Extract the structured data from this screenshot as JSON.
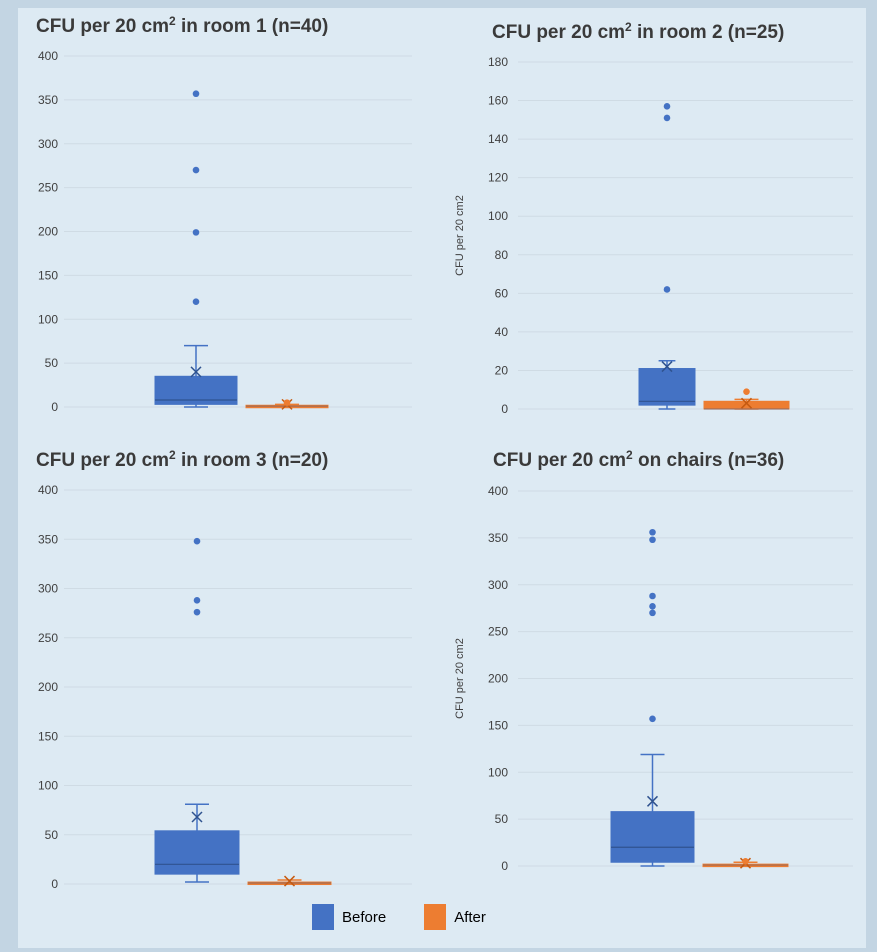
{
  "colors": {
    "before": "#4472c4",
    "after": "#ed7d31",
    "grid": "#cfdbe4",
    "panel_bg": "#ddeaf3",
    "page_bg": "#c3d5e3"
  },
  "legend": {
    "before_label": "Before",
    "after_label": "After"
  },
  "chart_data": [
    {
      "type": "box",
      "title": "CFU per 20 cm2 in room 1 (n=40)",
      "title_parts": {
        "pre": "CFU per 20 cm",
        "sup": "2",
        "post": " in room 1 (n=40)"
      },
      "ylabel": "",
      "ylim": [
        0,
        400
      ],
      "yticks": [
        0,
        50,
        100,
        150,
        200,
        250,
        300,
        350,
        400
      ],
      "grid": true,
      "series": [
        {
          "name": "Before",
          "q1": 3,
          "median": 8,
          "q3": 35,
          "whisker_low": 0,
          "whisker_high": 70,
          "mean": 40,
          "outliers": [
            120,
            199,
            270,
            357
          ]
        },
        {
          "name": "After",
          "q1": 0,
          "median": 1,
          "q3": 2,
          "whisker_low": 0,
          "whisker_high": 3,
          "mean": 3,
          "outliers": [
            5
          ]
        }
      ]
    },
    {
      "type": "box",
      "title": "CFU per 20 cm2 in room 2 (n=25)",
      "title_parts": {
        "pre": "CFU per 20 cm",
        "sup": "2",
        "post": " in room 2 (n=25)"
      },
      "ylabel": "CFU per 20 cm2",
      "ylim": [
        0,
        180
      ],
      "yticks": [
        0,
        20,
        40,
        60,
        80,
        100,
        120,
        140,
        160,
        180
      ],
      "grid": true,
      "series": [
        {
          "name": "Before",
          "q1": 2,
          "median": 4,
          "q3": 21,
          "whisker_low": 0,
          "whisker_high": 25,
          "mean": 22,
          "outliers": [
            62,
            151,
            157
          ]
        },
        {
          "name": "After",
          "q1": 0,
          "median": 0,
          "q3": 4,
          "whisker_low": 0,
          "whisker_high": 5,
          "mean": 3,
          "outliers": [
            9
          ]
        }
      ]
    },
    {
      "type": "box",
      "title": "CFU per 20 cm2 in room 3 (n=20)",
      "title_parts": {
        "pre": "CFU per 20 cm",
        "sup": "2",
        "post": " in room 3 (n=20)"
      },
      "ylabel": "",
      "ylim": [
        0,
        400
      ],
      "yticks": [
        0,
        50,
        100,
        150,
        200,
        250,
        300,
        350,
        400
      ],
      "grid": true,
      "series": [
        {
          "name": "Before",
          "q1": 10,
          "median": 20,
          "q3": 54,
          "whisker_low": 2,
          "whisker_high": 81,
          "mean": 68,
          "outliers": [
            276,
            288,
            348
          ]
        },
        {
          "name": "After",
          "q1": 0,
          "median": 1,
          "q3": 2,
          "whisker_low": 0,
          "whisker_high": 4,
          "mean": 3,
          "outliers": []
        }
      ]
    },
    {
      "type": "box",
      "title": "CFU per 20 cm2 on chairs (n=36)",
      "title_parts": {
        "pre": "CFU per 20 cm",
        "sup": "2",
        "post": " on chairs (n=36)"
      },
      "ylabel": "CFU per 20 cm2",
      "ylim": [
        0,
        400
      ],
      "yticks": [
        0,
        50,
        100,
        150,
        200,
        250,
        300,
        350,
        400
      ],
      "grid": true,
      "series": [
        {
          "name": "Before",
          "q1": 4,
          "median": 20,
          "q3": 58,
          "whisker_low": 0,
          "whisker_high": 119,
          "mean": 69,
          "outliers": [
            157,
            270,
            277,
            288,
            348,
            356
          ]
        },
        {
          "name": "After",
          "q1": 0,
          "median": 1,
          "q3": 2,
          "whisker_low": 0,
          "whisker_high": 4,
          "mean": 3,
          "outliers": [
            5
          ]
        }
      ]
    }
  ]
}
